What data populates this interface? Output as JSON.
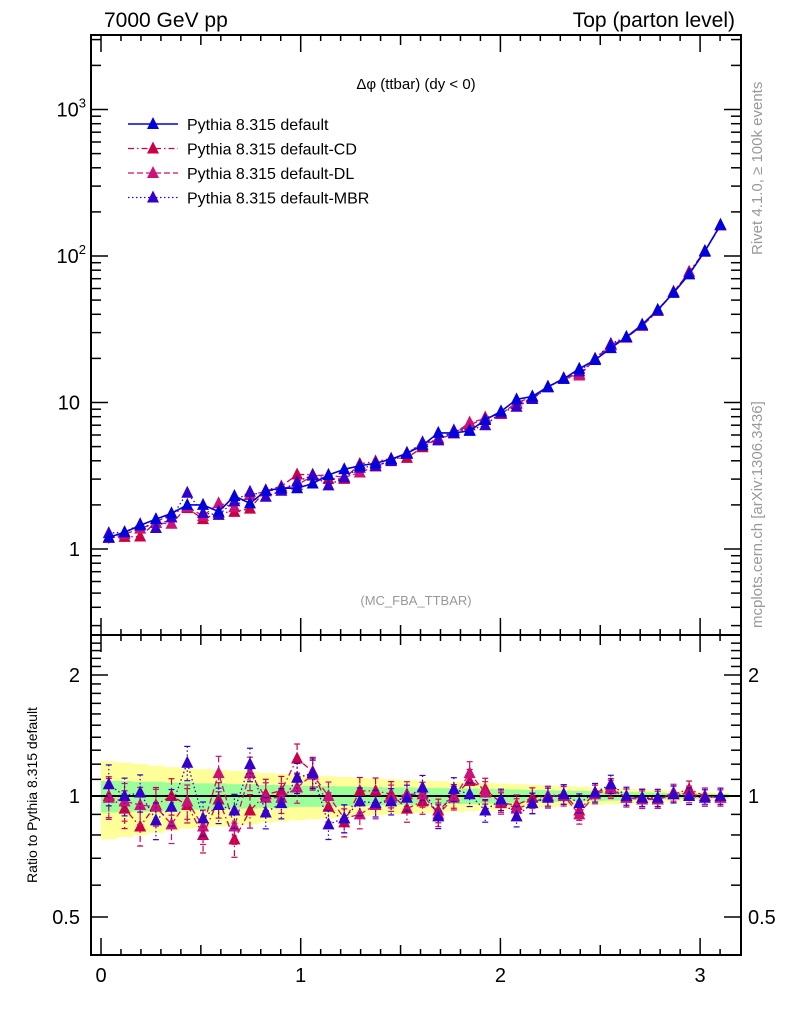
{
  "header": {
    "left": "7000 GeV pp",
    "right": "Top (parton level)"
  },
  "side_labels": {
    "upper": "Rivet 4.1.0, ≥ 100k events",
    "lower": "mcplots.cern.ch [arXiv:1306.3436]"
  },
  "chart_data": [
    {
      "type": "line",
      "panel": "main",
      "title": "Δφ (ttbar) (dy < 0)",
      "analysis_label": "(MC_FBA_TTBAR)",
      "xlabel": "",
      "ylabel": "",
      "xlim": [
        -0.05,
        3.2
      ],
      "ylim": [
        0.27,
        3000
      ],
      "yscale": "log",
      "x_ticks": [
        0,
        1,
        2,
        3
      ],
      "x_tick_labels": [
        "0",
        "1",
        "2",
        "3"
      ],
      "y_ticks": [
        1,
        10,
        100,
        1000
      ],
      "y_tick_labels": [
        "1",
        "10",
        "10^2",
        "10^3"
      ],
      "legend_position": "top-left",
      "x": [
        0.039,
        0.118,
        0.196,
        0.275,
        0.353,
        0.432,
        0.511,
        0.589,
        0.668,
        0.746,
        0.825,
        0.903,
        0.982,
        1.06,
        1.139,
        1.218,
        1.296,
        1.375,
        1.453,
        1.532,
        1.61,
        1.689,
        1.767,
        1.846,
        1.924,
        2.003,
        2.081,
        2.16,
        2.238,
        2.317,
        2.395,
        2.474,
        2.553,
        2.631,
        2.71,
        2.788,
        2.867,
        2.945,
        3.024,
        3.102
      ],
      "series": [
        {
          "name": "Pythia 8.315 default",
          "color": "#0000dd",
          "dash": "solid",
          "values": [
            1.2,
            1.3,
            1.45,
            1.6,
            1.75,
            2.0,
            2.0,
            1.8,
            2.3,
            2.05,
            2.5,
            2.6,
            2.6,
            2.8,
            3.2,
            3.5,
            3.7,
            3.85,
            4.1,
            4.5,
            5.1,
            6.2,
            6.2,
            6.4,
            7.6,
            8.7,
            10.5,
            11.0,
            12.8,
            14.5,
            17.0,
            19.5,
            23.5,
            28.0,
            34.0,
            43.0,
            56.0,
            75.0,
            108.0,
            163.0
          ],
          "errors": [
            0.1,
            0.1,
            0.11,
            0.12,
            0.13,
            0.14,
            0.14,
            0.13,
            0.16,
            0.14,
            0.16,
            0.16,
            0.16,
            0.17,
            0.19,
            0.2,
            0.21,
            0.21,
            0.22,
            0.24,
            0.26,
            0.3,
            0.3,
            0.31,
            0.35,
            0.38,
            0.44,
            0.46,
            0.52,
            0.58,
            0.66,
            0.74,
            0.88,
            1.03,
            1.22,
            1.52,
            1.94,
            2.55,
            3.6,
            5.4
          ]
        },
        {
          "name": "Pythia 8.315 default-CD",
          "color": "#cc0044",
          "dash": "dashdot",
          "ratio": [
            1.0,
            0.93,
            0.84,
            0.95,
            1.0,
            0.95,
            0.8,
            0.98,
            0.78,
            0.92,
            1.01,
            1.03,
            1.24,
            1.15,
            0.94,
            0.86,
            1.03,
            1.03,
            1.01,
            0.93,
            0.97,
            0.92,
            1.0,
            1.09,
            1.04,
            0.96,
            0.95,
            0.99,
            1.0,
            1.01,
            0.92,
            1.02,
            1.05,
            0.99,
            0.99,
            0.98,
            1.01,
            1.04,
            1.0,
            0.99
          ]
        },
        {
          "name": "Pythia 8.315 default-DL",
          "color": "#cc1177",
          "dash": "dashed",
          "ratio": [
            0.99,
            0.97,
            0.95,
            0.94,
            0.85,
            0.97,
            0.84,
            1.14,
            0.84,
            1.14,
            0.99,
            0.99,
            1.05,
            1.13,
            1.0,
            0.88,
            0.9,
            0.95,
            0.99,
            1.01,
            1.01,
            0.9,
            0.99,
            1.14,
            1.02,
            0.97,
            0.93,
            0.96,
            1.0,
            1.0,
            0.9,
            1.01,
            1.04,
            0.99,
            0.98,
            0.98,
            1.02,
            1.01,
            1.0,
            0.99
          ]
        },
        {
          "name": "Pythia 8.315 default-MBR",
          "color": "#3300cc",
          "dash": "dotted",
          "ratio": [
            1.07,
            1.0,
            1.02,
            0.87,
            0.94,
            1.21,
            0.88,
            0.95,
            0.92,
            1.2,
            0.91,
            0.96,
            1.11,
            1.14,
            0.85,
            0.88,
            0.97,
            0.96,
            0.97,
            0.99,
            1.05,
            0.89,
            1.04,
            1.01,
            0.92,
            0.98,
            0.89,
            0.96,
            0.99,
            1.01,
            0.96,
            1.02,
            1.07,
            1.0,
            0.99,
            0.99,
            1.01,
            1.0,
            0.99,
            1.0
          ]
        }
      ]
    },
    {
      "type": "line",
      "panel": "ratio",
      "ylabel": "Ratio to Pythia 8.315 default",
      "xlim": [
        -0.05,
        3.2
      ],
      "ylim": [
        0.4,
        2.4
      ],
      "yscale": "log",
      "y_ticks": [
        0.5,
        1,
        2
      ],
      "y_tick_labels": [
        "0.5",
        "1",
        "2"
      ],
      "x_ticks": [
        0,
        1,
        2,
        3
      ],
      "x_tick_labels": [
        "0",
        "1",
        "2",
        "3"
      ],
      "reference_line": 1,
      "band_colors": {
        "inner": "#99ff99",
        "outer": "#ffff99"
      },
      "band_inner_halfwidth": [
        0.09,
        0.09,
        0.085,
        0.085,
        0.08,
        0.08,
        0.075,
        0.075,
        0.07,
        0.07,
        0.065,
        0.065,
        0.06,
        0.06,
        0.058,
        0.056,
        0.055,
        0.053,
        0.05,
        0.05,
        0.048,
        0.046,
        0.045,
        0.044,
        0.042,
        0.04,
        0.038,
        0.036,
        0.034,
        0.032,
        0.03,
        0.028,
        0.026,
        0.024,
        0.022,
        0.02,
        0.018,
        0.016,
        0.014,
        0.012
      ],
      "band_outer_halfwidth": [
        0.22,
        0.21,
        0.2,
        0.19,
        0.18,
        0.17,
        0.165,
        0.16,
        0.155,
        0.15,
        0.14,
        0.135,
        0.13,
        0.125,
        0.12,
        0.115,
        0.11,
        0.105,
        0.1,
        0.095,
        0.092,
        0.089,
        0.085,
        0.082,
        0.078,
        0.074,
        0.07,
        0.066,
        0.062,
        0.058,
        0.054,
        0.05,
        0.046,
        0.042,
        0.038,
        0.034,
        0.03,
        0.026,
        0.022,
        0.018
      ]
    }
  ]
}
